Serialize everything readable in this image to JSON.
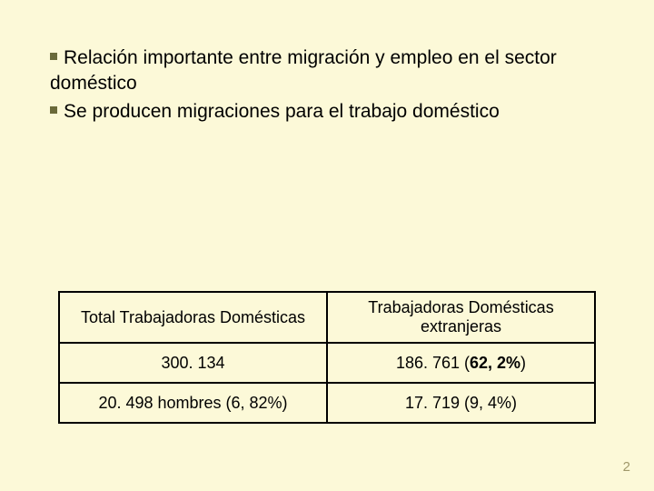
{
  "bullets": [
    "Relación importante entre migración y empleo en el sector doméstico",
    "Se producen migraciones para el trabajo doméstico"
  ],
  "table": {
    "header_left": "Total Trabajadoras Domésticas",
    "header_right": "Trabajadoras Domésticas extranjeras",
    "row1_left": "300. 134",
    "row1_right_pre": "186. 761 (",
    "row1_right_bold": "62, 2%",
    "row1_right_post": ")",
    "row2_left": "20. 498 hombres (6, 82%)",
    "row2_right": "17. 719 (9, 4%)"
  },
  "page_number": "2"
}
